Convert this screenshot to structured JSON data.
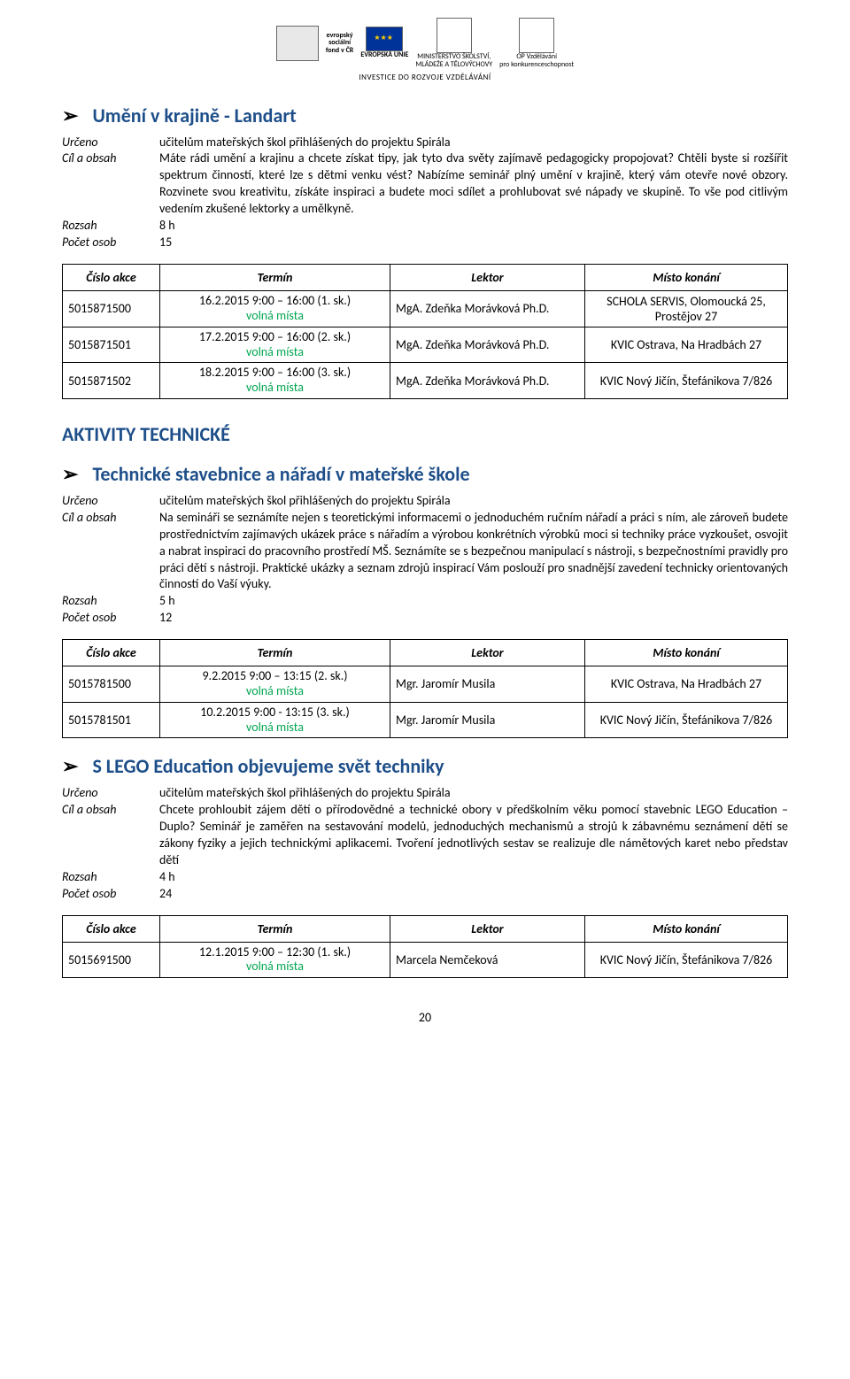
{
  "header": {
    "logos": {
      "esf_lines": [
        "evropský",
        "sociální",
        "fond v ČR"
      ],
      "eu_label": "EVROPSKÁ UNIE",
      "msmt_lines": [
        "MINISTERSTVO ŠKOLSTVÍ,",
        "MLÁDEŽE A TĚLOVÝCHOVY"
      ],
      "opvk_lines": [
        "OP Vzdělávání",
        "pro konkurenceschopnost"
      ]
    },
    "invest": "INVESTICE DO ROZVOJE VZDĚLÁVÁNÍ"
  },
  "labels": {
    "urceno": "Určeno",
    "cil": "Cíl a obsah",
    "rozsah": "Rozsah",
    "pocet": "Počet osob"
  },
  "th": {
    "code": "Číslo akce",
    "term": "Termín",
    "lector": "Lektor",
    "place": "Místo konání"
  },
  "volna": "volná místa",
  "page": "20",
  "section1": {
    "title": "Umění v krajině - Landart",
    "urceno": "učitelům mateřských škol přihlášených do projektu Spirála",
    "cil": "Máte rádi umění a krajinu a chcete získat tipy, jak tyto dva světy zajímavě pedagogicky propojovat? Chtěli byste si rozšířit spektrum činností, které lze s dětmi venku vést? Nabízíme seminář plný umění v krajině, který vám otevře nové obzory. Rozvinete svou kreativitu, získáte inspiraci a budete moci sdílet a prohlubovat své nápady ve skupině. To vše pod citlivým vedením zkušené lektorky a umělkyně.",
    "rozsah": "8 h",
    "pocet": "15",
    "rows": [
      {
        "code": "5015871500",
        "term": "16.2.2015   9:00 – 16:00 (1. sk.)",
        "lector": "MgA. Zdeňka Morávková Ph.D.",
        "place": "SCHOLA SERVIS, Olomoucká 25, Prostějov 27"
      },
      {
        "code": "5015871501",
        "term": "17.2.2015   9:00 – 16:00 (2. sk.)",
        "lector": "MgA. Zdeňka Morávková Ph.D.",
        "place": "KVIC Ostrava, Na Hradbách 27"
      },
      {
        "code": "5015871502",
        "term": "18.2.2015   9:00 – 16:00 (3. sk.)",
        "lector": "MgA. Zdeňka Morávková Ph.D.",
        "place": "KVIC Nový Jičín, Štefánikova 7/826"
      }
    ]
  },
  "section2_header": "AKTIVITY TECHNICKÉ",
  "section2": {
    "title": "Technické stavebnice a nářadí v mateřské škole",
    "urceno": "učitelům mateřských škol přihlášených do projektu Spirála",
    "cil": "Na semináři se seznámíte nejen s teoretickými informacemi o jednoduchém ručním nářadí a práci s ním, ale zároveň budete prostřednictvím zajímavých ukázek práce s nářadím a výrobou konkrétních výrobků moci si techniky práce vyzkoušet, osvojit a nabrat inspiraci do pracovního prostředí MŠ. Seznámíte se s bezpečnou manipulací s nástroji, s bezpečnostními pravidly pro práci dětí s nástroji. Praktické ukázky a seznam zdrojů inspirací Vám poslouží pro snadnější zavedení technicky orientovaných činností do Vaší výuky.",
    "rozsah": "5 h",
    "pocet": "12",
    "rows": [
      {
        "code": "5015781500",
        "term": "9.2.2015   9:00 – 13:15 (2. sk.)",
        "lector": "Mgr. Jaromír Musila",
        "place": "KVIC Ostrava, Na Hradbách 27"
      },
      {
        "code": "5015781501",
        "term": "10.2.2015   9:00 - 13:15 (3. sk.)",
        "lector": "Mgr. Jaromír Musila",
        "place": "KVIC Nový Jičín, Štefánikova 7/826"
      }
    ]
  },
  "section3": {
    "title": "S LEGO Education objevujeme svět techniky",
    "urceno": "učitelům mateřských škol přihlášených do projektu Spirála",
    "cil": "Chcete prohloubit zájem dětí o přírodovědné a technické obory v předškolním věku pomocí stavebnic LEGO Education – Duplo? Seminář je zaměřen na sestavování modelů, jednoduchých mechanismů a strojů k zábavnému seznámení dětí se zákony fyziky a jejich technickými aplikacemi. Tvoření jednotlivých sestav se realizuje dle námětových karet nebo představ dětí",
    "rozsah": "4 h",
    "pocet": "24",
    "rows": [
      {
        "code": "5015691500",
        "term": "12.1.2015   9:00 – 12:30 (1. sk.)",
        "lector": "Marcela Nemčeková",
        "place": "KVIC Nový Jičín, Štefánikova 7/826"
      }
    ]
  }
}
